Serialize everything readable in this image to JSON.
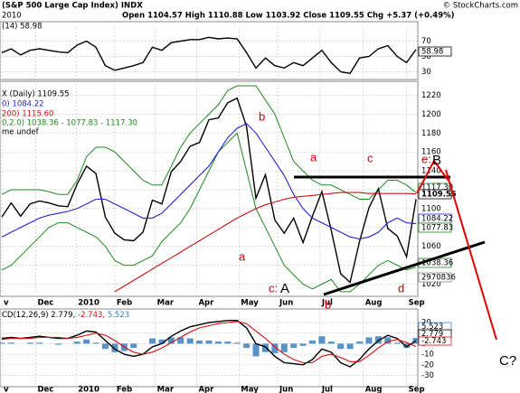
{
  "header": {
    "title": "(S&P 500 Large Cap Index) INDX",
    "quote": "Open 1104.57 High 1110.88 Low 1103.92 Close 1109.55 Chg +5.37 (+0.49%)",
    "credit": "© StockCharts.com",
    "date": "2010"
  },
  "chart_data": [
    {
      "type": "line",
      "ylim": [
        20,
        80
      ],
      "yticks": [
        30,
        50,
        70
      ],
      "grid": true,
      "series": [
        {
          "name": "(14) 58.98",
          "color": "#000000",
          "values": [
            55,
            60,
            52,
            58,
            60,
            58,
            56,
            55,
            65,
            70,
            62,
            38,
            32,
            35,
            38,
            42,
            62,
            58,
            68,
            70,
            72,
            72,
            75,
            73,
            74,
            73,
            55,
            35,
            48,
            38,
            35,
            42,
            38,
            48,
            58,
            42,
            30,
            28,
            48,
            50,
            60,
            64,
            50,
            42,
            59
          ]
        }
      ],
      "value_labels": [
        "58.98"
      ]
    },
    {
      "type": "line",
      "title": "X (Daily) 1109.55",
      "note": "me undef",
      "x": [
        0,
        1,
        2,
        3,
        4,
        5,
        6,
        7,
        8,
        9,
        10,
        11,
        12,
        13,
        14,
        15,
        16,
        17,
        18,
        19,
        20,
        21,
        22,
        23,
        24,
        25,
        26,
        27,
        28,
        29,
        30,
        31,
        32,
        33,
        34,
        35,
        36,
        37,
        38,
        39,
        40,
        41,
        42,
        43,
        44
      ],
      "xlim": [
        0,
        44
      ],
      "xticks": [
        {
          "value": 0,
          "label": "v"
        },
        {
          "value": 3.6,
          "label": "Dec"
        },
        {
          "value": 7.9,
          "label": "2010"
        },
        {
          "value": 12,
          "label": "Feb"
        },
        {
          "value": 16.3,
          "label": "Mar"
        },
        {
          "value": 20.7,
          "label": "Apr"
        },
        {
          "value": 25.2,
          "label": "May"
        },
        {
          "value": 29.3,
          "label": "Jun"
        },
        {
          "value": 33.8,
          "label": "Jul"
        },
        {
          "value": 38.4,
          "label": "Aug"
        },
        {
          "value": 43,
          "label": "Sep"
        }
      ],
      "ylim": [
        1010,
        1230
      ],
      "yticks": [
        1020,
        1040,
        1060,
        1080,
        1100,
        1120,
        1140,
        1160,
        1180,
        1200,
        1220
      ],
      "grid": true,
      "series": [
        {
          "name": "X (Daily) 1109.55",
          "color": "#000000",
          "values": [
            1091,
            1106,
            1092,
            1105,
            1108,
            1106,
            1103,
            1102,
            1126,
            1145,
            1137,
            1091,
            1074,
            1067,
            1066,
            1075,
            1109,
            1105,
            1139,
            1150,
            1166,
            1170,
            1194,
            1196,
            1212,
            1217,
            1187,
            1111,
            1136,
            1088,
            1074,
            1090,
            1064,
            1092,
            1118,
            1077,
            1031,
            1022,
            1065,
            1101,
            1121,
            1079,
            1071,
            1049,
            1110
          ]
        },
        {
          "name": "0) 1084.22",
          "color": "#2424c8",
          "values": [
            1070,
            1075,
            1080,
            1085,
            1090,
            1093,
            1095,
            1097,
            1100,
            1105,
            1110,
            1110,
            1105,
            1100,
            1095,
            1090,
            1090,
            1095,
            1105,
            1115,
            1125,
            1135,
            1145,
            1160,
            1175,
            1185,
            1190,
            1180,
            1165,
            1150,
            1135,
            1115,
            1100,
            1090,
            1085,
            1080,
            1075,
            1070,
            1068,
            1070,
            1075,
            1085,
            1090,
            1085,
            1084
          ]
        },
        {
          "name": "200) 1115.60",
          "color": "#d01010",
          "values": [
            null,
            null,
            null,
            null,
            null,
            null,
            null,
            null,
            null,
            null,
            null,
            null,
            1012,
            1018,
            1024,
            1030,
            1036,
            1042,
            1048,
            1054,
            1060,
            1066,
            1072,
            1078,
            1084,
            1090,
            1095,
            1100,
            1104,
            1107,
            1110,
            1112,
            1113,
            1114,
            1115,
            1116,
            1117,
            1117,
            1117,
            1116,
            1116,
            1116,
            1116,
            1116,
            1115.6
          ]
        }
      ],
      "bands": {
        "name": "0,2.0) 1038.36 - 1077.83 - 1117.30",
        "color": "#1e8a1e",
        "upper": [
          1115,
          1120,
          1120,
          1120,
          1120,
          1118,
          1115,
          1115,
          1130,
          1155,
          1165,
          1165,
          1160,
          1150,
          1140,
          1130,
          1125,
          1125,
          1145,
          1165,
          1180,
          1190,
          1200,
          1210,
          1225,
          1230,
          1230,
          1230,
          1215,
          1200,
          1175,
          1150,
          1140,
          1130,
          1125,
          1125,
          1120,
          1115,
          1110,
          1110,
          1120,
          1130,
          1130,
          1125,
          1117
        ],
        "lower": [
          1035,
          1040,
          1050,
          1060,
          1070,
          1080,
          1085,
          1085,
          1080,
          1075,
          1070,
          1060,
          1045,
          1040,
          1040,
          1045,
          1050,
          1065,
          1075,
          1085,
          1100,
          1120,
          1140,
          1160,
          1170,
          1180,
          1140,
          1100,
          1080,
          1060,
          1040,
          1030,
          1020,
          1015,
          1020,
          1025,
          1012,
          1012,
          1020,
          1030,
          1040,
          1045,
          1040,
          1035,
          1038
        ]
      },
      "value_labels": [
        "1117.30",
        "1109.55",
        "1084.22",
        "1077.83",
        "1038.36",
        "2970836"
      ],
      "annotations": [
        "b",
        "a",
        "c",
        "e:",
        "B",
        "a",
        "c:",
        "A",
        "b",
        "d",
        "C?"
      ]
    },
    {
      "type": "line",
      "ylim": [
        -39,
        32
      ],
      "yticks": [
        -30,
        -20,
        -10,
        0,
        10,
        20
      ],
      "grid": true,
      "series": [
        {
          "name": "CD(12,26,9) 2.779,",
          "color": "#000000",
          "values": [
            5,
            6,
            5,
            6,
            7,
            6,
            5,
            5,
            8,
            12,
            11,
            3,
            -5,
            -10,
            -12,
            -10,
            -3,
            0,
            7,
            12,
            16,
            18,
            20,
            21,
            22,
            22,
            15,
            0,
            -3,
            -12,
            -18,
            -19,
            -20,
            -15,
            -5,
            -8,
            -18,
            -22,
            -15,
            -5,
            3,
            8,
            5,
            -3,
            2.8
          ]
        },
        {
          "name": "-2.743,",
          "color": "#d01010",
          "values": [
            4,
            5,
            5,
            5,
            6,
            6,
            6,
            5,
            6,
            8,
            10,
            8,
            3,
            -3,
            -8,
            -10,
            -8,
            -4,
            1,
            6,
            11,
            15,
            17,
            19,
            20,
            21,
            19,
            12,
            5,
            -3,
            -10,
            -15,
            -18,
            -18,
            -12,
            -10,
            -13,
            -17,
            -17,
            -11,
            -4,
            2,
            4,
            1,
            -2.7
          ]
        },
        {
          "name": "5.523",
          "color": "#3a7fc0",
          "type": "bar",
          "values": [
            1,
            1,
            0,
            1,
            1,
            0,
            -1,
            0,
            2,
            4,
            1,
            -5,
            -8,
            -7,
            -4,
            0,
            5,
            4,
            6,
            6,
            5,
            3,
            3,
            2,
            2,
            1,
            -4,
            -12,
            -8,
            -9,
            -8,
            -4,
            -2,
            3,
            7,
            2,
            -5,
            -5,
            2,
            6,
            7,
            6,
            1,
            -4,
            5.5
          ]
        }
      ],
      "value_labels": [
        "5.523",
        "2.779",
        "-2.743"
      ]
    }
  ]
}
